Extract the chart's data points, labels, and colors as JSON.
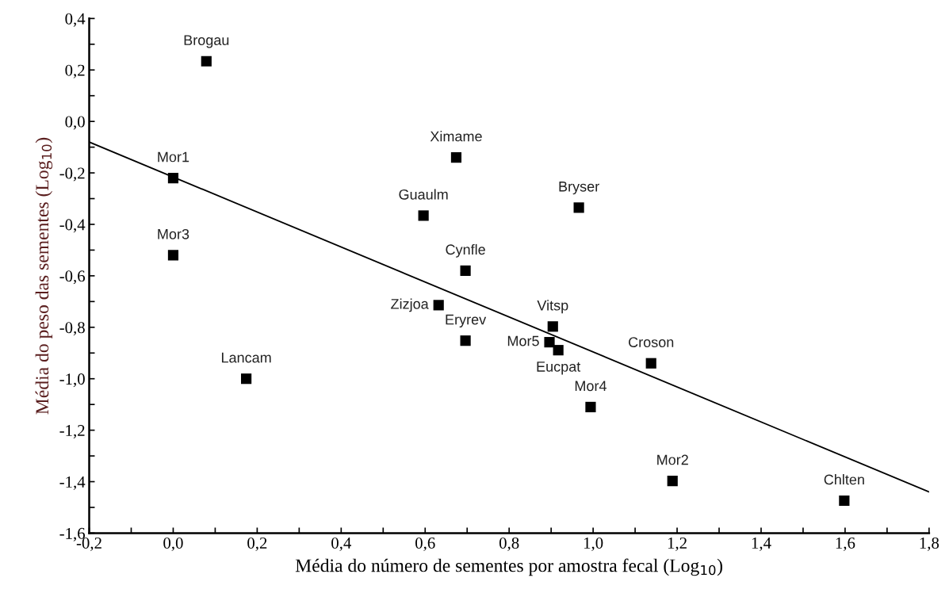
{
  "chart_data": {
    "type": "scatter",
    "xlabel": "Média do número de sementes por amostra fecal (Log$_{10}$)",
    "ylabel": "Média do peso das sementes (Log$_{10}$)",
    "marker": "square",
    "grid": false,
    "legend": false,
    "series": [
      {
        "color": "#000000",
        "x": [
          0.079,
          0.0,
          0.0,
          0.674,
          0.596,
          0.966,
          0.696,
          0.632,
          0.696,
          0.904,
          0.896,
          0.917,
          1.138,
          0.994,
          1.189,
          1.598,
          0.174
        ],
        "values": [
          0.234,
          -0.22,
          -0.52,
          -0.14,
          -0.366,
          -0.335,
          -0.58,
          -0.714,
          -0.852,
          -0.797,
          -0.858,
          -0.889,
          -0.94,
          -1.11,
          -1.397,
          -1.474,
          -1.0
        ]
      },
      {
        "type": "line",
        "color": "#000000",
        "marker": "none",
        "line_style": "solid",
        "x": [
          -0.2,
          1.8
        ],
        "values": [
          -0.08,
          -1.44
        ]
      }
    ],
    "annotations": [
      {
        "text": "Brogau",
        "x": 0.079,
        "y": 0.234
      },
      {
        "text": "Mor1",
        "x": 0.0,
        "y": -0.22
      },
      {
        "text": "Mor3",
        "x": 0.0,
        "y": -0.52
      },
      {
        "text": "Ximame",
        "x": 0.674,
        "y": -0.14
      },
      {
        "text": "Guaulm",
        "x": 0.596,
        "y": -0.366
      },
      {
        "text": "Bryser",
        "x": 0.966,
        "y": -0.335
      },
      {
        "text": "Cynfle",
        "x": 0.696,
        "y": -0.58
      },
      {
        "text": "Zizjoa",
        "x": 0.632,
        "y": -0.714
      },
      {
        "text": "Eryrev",
        "x": 0.696,
        "y": -0.852
      },
      {
        "text": "Vitsp",
        "x": 0.904,
        "y": -0.797
      },
      {
        "text": "Mor5",
        "x": 0.896,
        "y": -0.858
      },
      {
        "text": "Eucpat",
        "x": 0.917,
        "y": -0.889
      },
      {
        "text": "Croson",
        "x": 1.138,
        "y": -0.94
      },
      {
        "text": "Mor4",
        "x": 0.994,
        "y": -1.11
      },
      {
        "text": "Mor2",
        "x": 1.189,
        "y": -1.397
      },
      {
        "text": "Chlten",
        "x": 1.598,
        "y": -1.474
      },
      {
        "text": "Lancam",
        "x": 0.174,
        "y": -1.0
      }
    ],
    "xlim": [
      -0.2,
      1.8
    ],
    "xticks": [
      {
        "value": -0.2,
        "label": "-0,2"
      },
      {
        "value": -0.1,
        "label": null
      },
      {
        "value": 0.0,
        "label": "0,0"
      },
      {
        "value": 0.1,
        "label": null
      },
      {
        "value": 0.2,
        "label": "0,2"
      },
      {
        "value": 0.3,
        "label": null
      },
      {
        "value": 0.4,
        "label": "0,4"
      },
      {
        "value": 0.5,
        "label": null
      },
      {
        "value": 0.6,
        "label": "0,6"
      },
      {
        "value": 0.7,
        "label": null
      },
      {
        "value": 0.8,
        "label": "0,8"
      },
      {
        "value": 0.9,
        "label": null
      },
      {
        "value": 1.0,
        "label": "1,0"
      },
      {
        "value": 1.1,
        "label": null
      },
      {
        "value": 1.2,
        "label": "1,2"
      },
      {
        "value": 1.3,
        "label": null
      },
      {
        "value": 1.4,
        "label": "1,4"
      },
      {
        "value": 1.5,
        "label": null
      },
      {
        "value": 1.6,
        "label": "1,6"
      },
      {
        "value": 1.7,
        "label": null
      },
      {
        "value": 1.8,
        "label": "1,8"
      }
    ],
    "ylim": [
      -1.6,
      0.4
    ],
    "yticks": [
      {
        "value": -1.6,
        "label": "-1,6"
      },
      {
        "value": -1.5,
        "label": null
      },
      {
        "value": -1.4,
        "label": "-1,4"
      },
      {
        "value": -1.3,
        "label": null
      },
      {
        "value": -1.2,
        "label": "-1,2"
      },
      {
        "value": -1.1,
        "label": null
      },
      {
        "value": -1.0,
        "label": "-1,0"
      },
      {
        "value": -0.9,
        "label": null
      },
      {
        "value": -0.8,
        "label": "-0,8"
      },
      {
        "value": -0.7,
        "label": null
      },
      {
        "value": -0.6,
        "label": "-0,6"
      },
      {
        "value": -0.5,
        "label": null
      },
      {
        "value": -0.4,
        "label": "-0,4"
      },
      {
        "value": -0.3,
        "label": null
      },
      {
        "value": -0.2,
        "label": "-0,2"
      },
      {
        "value": -0.1,
        "label": null
      },
      {
        "value": 0.0,
        "label": "0,0"
      },
      {
        "value": 0.1,
        "label": null
      },
      {
        "value": 0.2,
        "label": "0,2"
      },
      {
        "value": 0.3,
        "label": null
      },
      {
        "value": 0.4,
        "label": "0,4"
      }
    ]
  }
}
